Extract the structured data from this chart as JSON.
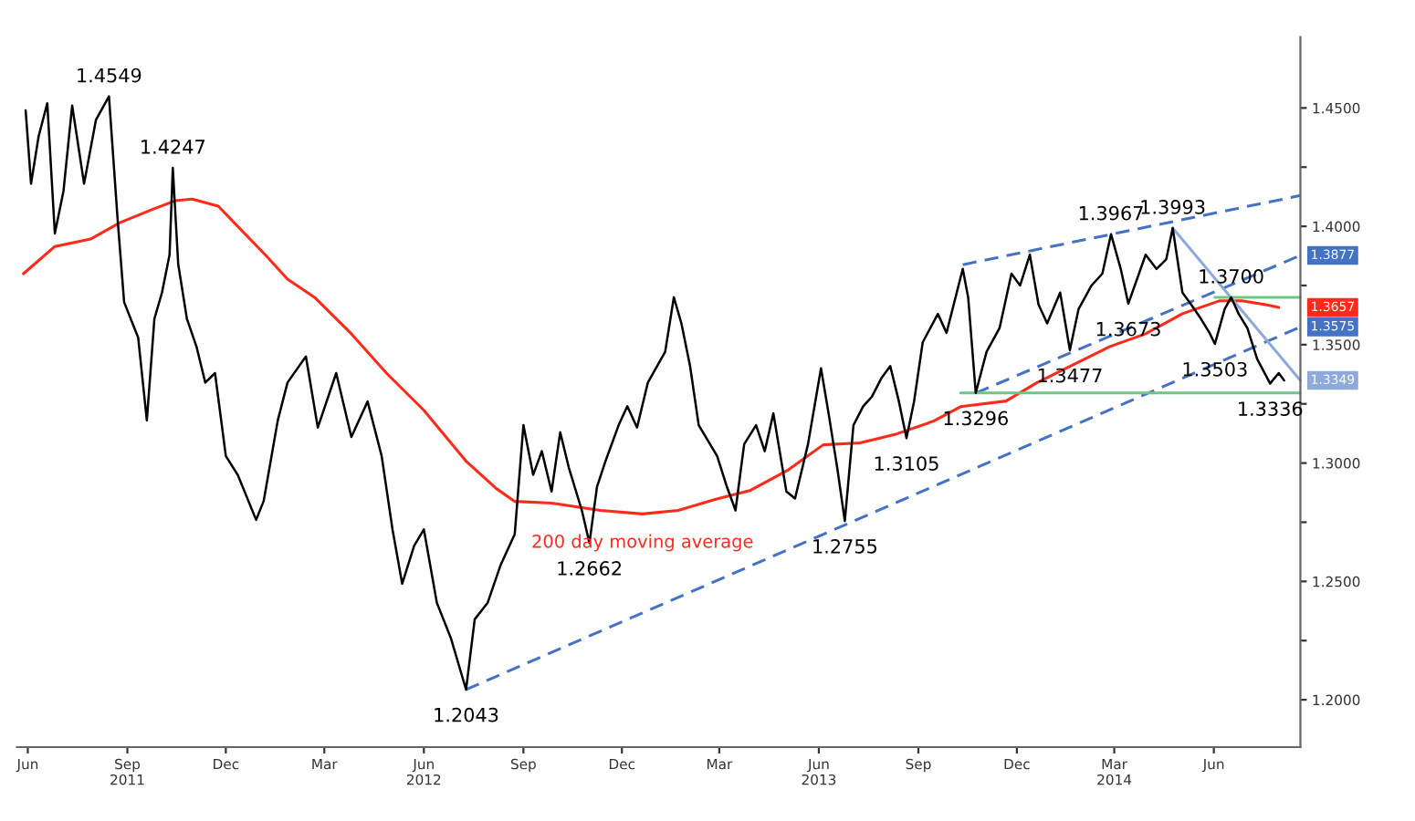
{
  "chart_data": {
    "type": "line",
    "xlim": [
      "2011-06-05",
      "2014-09-03"
    ],
    "ylim": [
      1.18,
      1.48
    ],
    "xticks": [
      {
        "value": "2011-06-15",
        "label": "Jun"
      },
      {
        "value": "2011-09-15",
        "label": "Sep\n2011"
      },
      {
        "value": "2011-12-15",
        "label": "Dec"
      },
      {
        "value": "2012-03-15",
        "label": "Mar"
      },
      {
        "value": "2012-06-15",
        "label": "Jun\n2012"
      },
      {
        "value": "2012-09-15",
        "label": "Sep"
      },
      {
        "value": "2012-12-15",
        "label": "Dec"
      },
      {
        "value": "2013-03-15",
        "label": "Mar"
      },
      {
        "value": "2013-06-15",
        "label": "Jun\n2013"
      },
      {
        "value": "2013-09-15",
        "label": "Sep"
      },
      {
        "value": "2013-12-15",
        "label": "Dec"
      },
      {
        "value": "2014-03-15",
        "label": "Mar\n2014"
      },
      {
        "value": "2014-06-15",
        "label": "Jun"
      }
    ],
    "yticks": [
      {
        "value": 1.2,
        "label": "1.2000"
      },
      {
        "value": 1.225,
        "label": null
      },
      {
        "value": 1.25,
        "label": "1.2500"
      },
      {
        "value": 1.275,
        "label": null
      },
      {
        "value": 1.3,
        "label": "1.3000"
      },
      {
        "value": 1.325,
        "label": null
      },
      {
        "value": 1.35,
        "label": "1.3500"
      },
      {
        "value": 1.375,
        "label": null
      },
      {
        "value": 1.4,
        "label": "1.4000"
      },
      {
        "value": 1.425,
        "label": null
      },
      {
        "value": 1.45,
        "label": "1.4500"
      }
    ],
    "grid": false,
    "legend": false,
    "series": [
      {
        "color": "#000000",
        "x": [
          "2011-06-13",
          "2011-06-18",
          "2011-06-25",
          "2011-07-03",
          "2011-07-10",
          "2011-07-18",
          "2011-07-26",
          "2011-08-06",
          "2011-08-17",
          "2011-08-29",
          "2011-09-06",
          "2011-09-12",
          "2011-09-18",
          "2011-09-25",
          "2011-10-03",
          "2011-10-10",
          "2011-10-17",
          "2011-10-24",
          "2011-10-27",
          "2011-11-01",
          "2011-11-09",
          "2011-11-18",
          "2011-11-26",
          "2011-12-05",
          "2011-12-15",
          "2011-12-26",
          "2012-01-12",
          "2012-01-19",
          "2012-02-01",
          "2012-02-10",
          "2012-02-27",
          "2012-03-09",
          "2012-03-26",
          "2012-04-09",
          "2012-04-24",
          "2012-05-07",
          "2012-05-17",
          "2012-05-26",
          "2012-06-06",
          "2012-06-15",
          "2012-06-27",
          "2012-07-10",
          "2012-07-24",
          "2012-08-01",
          "2012-08-13",
          "2012-08-25",
          "2012-09-07",
          "2012-09-15",
          "2012-09-24",
          "2012-10-02",
          "2012-10-11",
          "2012-10-19",
          "2012-10-27",
          "2012-11-08",
          "2012-11-15",
          "2012-11-22",
          "2012-11-30",
          "2012-12-12",
          "2012-12-20",
          "2012-12-29",
          "2013-01-08",
          "2013-01-24",
          "2013-02-01",
          "2013-02-08",
          "2013-02-16",
          "2013-02-24",
          "2013-03-13",
          "2013-03-22",
          "2013-03-30",
          "2013-04-07",
          "2013-04-18",
          "2013-04-26",
          "2013-05-04",
          "2013-05-16",
          "2013-05-24",
          "2013-06-05",
          "2013-06-17",
          "2013-06-24",
          "2013-07-02",
          "2013-07-09",
          "2013-07-17",
          "2013-07-26",
          "2013-08-03",
          "2013-08-12",
          "2013-08-20",
          "2013-08-28",
          "2013-09-04",
          "2013-09-11",
          "2013-09-19",
          "2013-10-03",
          "2013-10-11",
          "2013-10-26",
          "2013-10-31",
          "2013-11-07",
          "2013-11-17",
          "2013-11-29",
          "2013-12-10",
          "2013-12-18",
          "2013-12-27",
          "2014-01-04",
          "2014-01-12",
          "2014-01-24",
          "2014-02-02",
          "2014-02-10",
          "2014-02-22",
          "2014-03-04",
          "2014-03-12",
          "2014-03-21",
          "2014-03-28",
          "2014-04-13",
          "2014-04-23",
          "2014-05-02",
          "2014-05-08",
          "2014-05-17",
          "2014-05-25",
          "2014-06-03",
          "2014-06-11",
          "2014-06-16",
          "2014-06-25",
          "2014-07-01",
          "2014-07-08",
          "2014-07-16",
          "2014-07-25",
          "2014-08-06",
          "2014-08-14",
          "2014-08-19"
        ],
        "values": [
          1.449,
          1.418,
          1.438,
          1.452,
          1.397,
          1.415,
          1.451,
          1.418,
          1.445,
          1.4549,
          1.403,
          1.368,
          1.361,
          1.353,
          1.318,
          1.361,
          1.372,
          1.388,
          1.4247,
          1.384,
          1.361,
          1.349,
          1.334,
          1.338,
          1.303,
          1.295,
          1.276,
          1.284,
          1.318,
          1.334,
          1.345,
          1.315,
          1.338,
          1.311,
          1.326,
          1.303,
          1.272,
          1.249,
          1.265,
          1.272,
          1.241,
          1.226,
          1.2043,
          1.234,
          1.241,
          1.257,
          1.27,
          1.316,
          1.295,
          1.305,
          1.288,
          1.313,
          1.298,
          1.28,
          1.2662,
          1.29,
          1.301,
          1.316,
          1.324,
          1.315,
          1.334,
          1.347,
          1.37,
          1.359,
          1.341,
          1.316,
          1.303,
          1.29,
          1.28,
          1.308,
          1.316,
          1.305,
          1.321,
          1.288,
          1.285,
          1.308,
          1.34,
          1.321,
          1.298,
          1.2755,
          1.316,
          1.324,
          1.328,
          1.336,
          1.341,
          1.326,
          1.3105,
          1.326,
          1.351,
          1.363,
          1.355,
          1.382,
          1.37,
          1.3296,
          1.347,
          1.357,
          1.38,
          1.375,
          1.388,
          1.367,
          1.359,
          1.372,
          1.3477,
          1.365,
          1.375,
          1.38,
          1.3967,
          1.382,
          1.3673,
          1.388,
          1.382,
          1.386,
          1.3993,
          1.372,
          1.367,
          1.361,
          1.355,
          1.3503,
          1.365,
          1.37,
          1.363,
          1.357,
          1.344,
          1.3336,
          1.338,
          1.3349
        ]
      },
      {
        "name": "200 day moving average",
        "color": "#ff2a1a",
        "x": [
          "2011-06-11",
          "2011-07-10",
          "2011-08-12",
          "2011-09-08",
          "2011-10-07",
          "2011-10-29",
          "2011-11-14",
          "2011-12-08",
          "2012-01-21",
          "2012-02-10",
          "2012-03-06",
          "2012-04-09",
          "2012-05-12",
          "2012-06-15",
          "2012-07-24",
          "2012-08-21",
          "2012-09-07",
          "2012-10-11",
          "2012-11-25",
          "2013-01-03",
          "2013-02-05",
          "2013-03-11",
          "2013-04-13",
          "2013-05-17",
          "2013-06-19",
          "2013-07-23",
          "2013-08-26",
          "2013-09-29",
          "2013-10-24",
          "2013-12-05",
          "2014-01-02",
          "2014-02-05",
          "2014-03-11",
          "2014-04-13",
          "2014-05-17",
          "2014-06-20",
          "2014-07-11",
          "2014-08-02",
          "2014-08-14"
        ],
        "values": [
          1.38,
          1.3915,
          1.3946,
          1.4015,
          1.4069,
          1.4108,
          1.4115,
          1.4085,
          1.3877,
          1.3777,
          1.37,
          1.3546,
          1.3377,
          1.3223,
          1.3008,
          1.2892,
          1.2838,
          1.2831,
          1.28,
          1.2785,
          1.28,
          1.2846,
          1.2885,
          1.2969,
          1.3077,
          1.3085,
          1.3123,
          1.3177,
          1.3238,
          1.3262,
          1.3338,
          1.3415,
          1.3492,
          1.3546,
          1.3631,
          1.3685,
          1.3685,
          1.3669,
          1.3657
        ]
      },
      {
        "color": "#4472c4",
        "line_style": "dashed",
        "x": [
          "2012-07-24",
          "2014-09-03"
        ],
        "values": [
          1.2043,
          1.3575
        ]
      },
      {
        "color": "#4472c4",
        "line_style": "dashed",
        "x": [
          "2013-11-07",
          "2014-09-03"
        ],
        "values": [
          1.3296,
          1.3877
        ]
      },
      {
        "color": "#4472c4",
        "line_style": "dashed",
        "x": [
          "2013-10-26",
          "2014-09-03"
        ],
        "values": [
          1.3838,
          1.413
        ]
      },
      {
        "color": "#8eaadb",
        "line_style": "solid",
        "x": [
          "2014-05-08",
          "2014-09-03"
        ],
        "values": [
          1.3993,
          1.3349
        ]
      },
      {
        "color": "#6cc785",
        "line_style": "solid",
        "x": [
          "2014-06-16",
          "2014-09-03"
        ],
        "values": [
          1.37,
          1.37
        ]
      },
      {
        "color": "#6cc785",
        "line_style": "solid",
        "x": [
          "2013-10-24",
          "2014-09-03"
        ],
        "values": [
          1.3296,
          1.3296
        ]
      }
    ],
    "annotations": [
      {
        "text": "1.4549",
        "x": "2011-08-29",
        "y": 1.4549
      },
      {
        "text": "1.4247",
        "x": "2011-10-27",
        "y": 1.4247
      },
      {
        "text": "1.2043",
        "x": "2012-07-24",
        "y": 1.2043
      },
      {
        "text": "1.2662",
        "x": "2012-11-15",
        "y": 1.2662
      },
      {
        "text": "1.2755",
        "x": "2013-07-09",
        "y": 1.2755
      },
      {
        "text": "1.3105",
        "x": "2013-09-04",
        "y": 1.3105
      },
      {
        "text": "1.3296",
        "x": "2013-11-07",
        "y": 1.3296
      },
      {
        "text": "1.3477",
        "x": "2014-02-02",
        "y": 1.3477
      },
      {
        "text": "1.3967",
        "x": "2014-03-12",
        "y": 1.3967
      },
      {
        "text": "1.3673",
        "x": "2014-03-28",
        "y": 1.3673
      },
      {
        "text": "1.3993",
        "x": "2014-05-08",
        "y": 1.3993
      },
      {
        "text": "1.3503",
        "x": "2014-06-16",
        "y": 1.3503
      },
      {
        "text": "1.3700",
        "x": "2014-07-01",
        "y": 1.37
      },
      {
        "text": "1.3336",
        "x": "2014-08-06",
        "y": 1.3336
      },
      {
        "text": "1.3877",
        "x": "2014-09-03",
        "y": 1.3877
      },
      {
        "text": "1.3657",
        "x": "2014-08-14",
        "y": 1.3657
      },
      {
        "text": "1.3575",
        "x": "2014-09-03",
        "y": 1.3575
      },
      {
        "text": "1.3349",
        "x": "2014-09-03",
        "y": 1.3349
      }
    ]
  }
}
